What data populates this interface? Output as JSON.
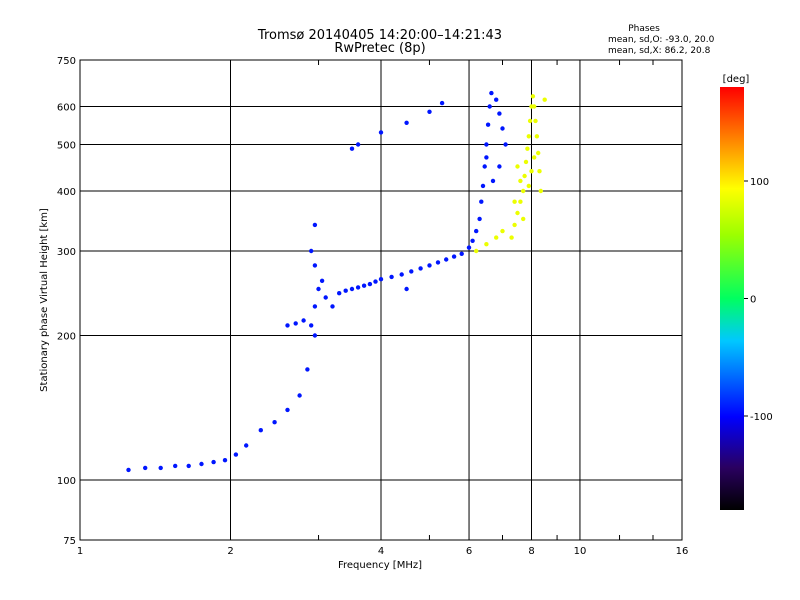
{
  "chart_data": {
    "type": "scatter",
    "title": "Tromsø 20140405 14:20:00–14:21:43",
    "subtitle": "RwPretec (8p)",
    "xlabel": "Frequency [MHz]",
    "ylabel": "Stationary phase Virtual Height [km]",
    "x_scale": "log2",
    "y_scale": "log",
    "xlim": [
      1,
      16
    ],
    "ylim": [
      75,
      750
    ],
    "x_ticks": [
      "1",
      "2",
      "4",
      "6",
      "8",
      "10",
      "16"
    ],
    "y_ticks": [
      "750",
      "600",
      "500",
      "400",
      "300",
      "200",
      "100",
      "75"
    ],
    "grid": true,
    "legend": {
      "title": "Phases",
      "lines": [
        "mean, sd,O: -93.0, 20.0",
        "mean, sd,X:  86.2, 20.8"
      ]
    },
    "colorbar": {
      "label": "[deg]",
      "ticks": [
        "100",
        "0",
        "-100"
      ],
      "range": [
        -180,
        180
      ],
      "colormap": "rainbow-black-to-red"
    },
    "series": [
      {
        "name": "O",
        "phase_mean": -93.0,
        "points": [
          [
            1.25,
            105
          ],
          [
            1.35,
            106
          ],
          [
            1.45,
            106
          ],
          [
            1.55,
            107
          ],
          [
            1.65,
            107
          ],
          [
            1.75,
            108
          ],
          [
            1.85,
            109
          ],
          [
            1.95,
            110
          ],
          [
            2.05,
            113
          ],
          [
            2.15,
            118
          ],
          [
            2.3,
            127
          ],
          [
            2.45,
            132
          ],
          [
            2.6,
            140
          ],
          [
            2.75,
            150
          ],
          [
            2.85,
            170
          ],
          [
            2.95,
            200
          ],
          [
            2.9,
            210
          ],
          [
            2.95,
            230
          ],
          [
            3.0,
            250
          ],
          [
            2.95,
            280
          ],
          [
            2.9,
            300
          ],
          [
            2.95,
            340
          ],
          [
            3.05,
            260
          ],
          [
            3.1,
            240
          ],
          [
            3.2,
            230
          ],
          [
            3.3,
            245
          ],
          [
            3.4,
            248
          ],
          [
            3.5,
            250
          ],
          [
            3.6,
            252
          ],
          [
            3.7,
            254
          ],
          [
            3.8,
            256
          ],
          [
            3.9,
            259
          ],
          [
            4.0,
            262
          ],
          [
            4.2,
            265
          ],
          [
            4.4,
            268
          ],
          [
            4.6,
            272
          ],
          [
            4.8,
            276
          ],
          [
            5.0,
            280
          ],
          [
            5.2,
            284
          ],
          [
            5.4,
            288
          ],
          [
            5.6,
            292
          ],
          [
            5.8,
            296
          ],
          [
            6.0,
            305
          ],
          [
            6.1,
            315
          ],
          [
            6.2,
            330
          ],
          [
            6.3,
            350
          ],
          [
            6.35,
            380
          ],
          [
            6.4,
            410
          ],
          [
            6.45,
            450
          ],
          [
            6.5,
            500
          ],
          [
            6.55,
            550
          ],
          [
            6.6,
            600
          ],
          [
            6.65,
            640
          ],
          [
            6.8,
            620
          ],
          [
            6.9,
            580
          ],
          [
            7.0,
            540
          ],
          [
            7.1,
            500
          ],
          [
            6.9,
            450
          ],
          [
            6.7,
            420
          ],
          [
            6.5,
            470
          ],
          [
            3.5,
            490
          ],
          [
            3.6,
            500
          ],
          [
            4.0,
            530
          ],
          [
            4.5,
            555
          ],
          [
            5.0,
            585
          ],
          [
            5.3,
            610
          ],
          [
            2.6,
            210
          ],
          [
            2.7,
            212
          ],
          [
            2.8,
            215
          ],
          [
            4.5,
            250
          ]
        ]
      },
      {
        "name": "X",
        "phase_mean": 86.2,
        "points": [
          [
            7.3,
            320
          ],
          [
            7.4,
            340
          ],
          [
            7.5,
            360
          ],
          [
            7.6,
            380
          ],
          [
            7.7,
            400
          ],
          [
            7.75,
            430
          ],
          [
            7.8,
            460
          ],
          [
            7.85,
            490
          ],
          [
            7.9,
            520
          ],
          [
            7.95,
            560
          ],
          [
            8.0,
            600
          ],
          [
            8.05,
            630
          ],
          [
            8.1,
            600
          ],
          [
            8.15,
            560
          ],
          [
            8.2,
            520
          ],
          [
            8.25,
            480
          ],
          [
            8.3,
            440
          ],
          [
            8.35,
            400
          ],
          [
            7.6,
            420
          ],
          [
            7.5,
            450
          ],
          [
            7.9,
            410
          ],
          [
            8.0,
            440
          ],
          [
            8.1,
            470
          ],
          [
            7.7,
            350
          ],
          [
            7.4,
            380
          ],
          [
            6.2,
            300
          ],
          [
            6.5,
            310
          ],
          [
            6.8,
            320
          ],
          [
            7.0,
            330
          ],
          [
            8.5,
            620
          ]
        ]
      }
    ]
  }
}
